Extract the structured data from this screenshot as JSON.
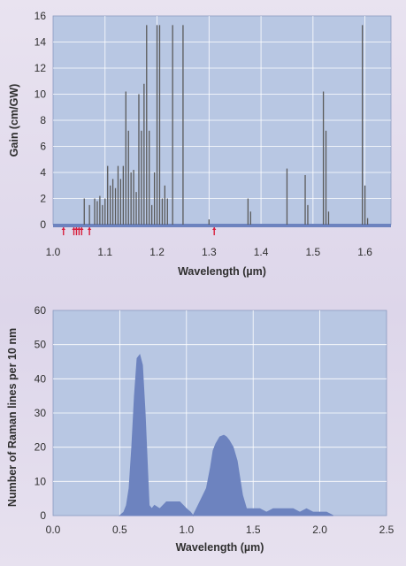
{
  "chart_data": [
    {
      "type": "bar",
      "xlabel": "Wavelength (µm)",
      "ylabel": "Gain (cm/GW)",
      "xlim": [
        1.0,
        1.65
      ],
      "ylim": [
        0,
        16
      ],
      "xticks": [
        1.0,
        1.1,
        1.2,
        1.3,
        1.4,
        1.5,
        1.6
      ],
      "xtick_labels": [
        "1.0",
        "1.1",
        "1.2",
        "1.3",
        "1.4",
        "1.5",
        "1.6"
      ],
      "yticks": [
        0,
        2,
        4,
        6,
        8,
        10,
        12,
        14,
        16
      ],
      "ytick_labels": [
        "0",
        "2",
        "4",
        "6",
        "8",
        "10",
        "12",
        "14",
        "16"
      ],
      "grid": true,
      "colors": {
        "plot_bg": "#b8c7e3",
        "grid": "#ffffff",
        "lines": "#555555",
        "markers": "#d81e3c",
        "axis_band": "#6d83bf"
      },
      "series": [
        {
          "x": [
            1.06,
            1.07,
            1.08,
            1.085,
            1.09,
            1.095,
            1.1,
            1.105,
            1.11,
            1.115,
            1.12,
            1.125,
            1.13,
            1.135,
            1.14,
            1.145,
            1.15,
            1.155,
            1.16,
            1.165,
            1.17,
            1.175,
            1.18,
            1.185,
            1.19,
            1.195,
            1.2,
            1.205,
            1.21,
            1.215,
            1.22,
            1.23,
            1.25,
            1.3,
            1.375,
            1.38,
            1.45,
            1.485,
            1.49,
            1.52,
            1.525,
            1.53,
            1.595,
            1.6,
            1.605
          ],
          "values": [
            2.0,
            1.5,
            2.0,
            1.8,
            2.2,
            1.5,
            2.0,
            4.5,
            3.0,
            3.5,
            2.8,
            4.5,
            3.5,
            4.5,
            10.2,
            7.2,
            4.0,
            4.2,
            2.5,
            10.0,
            7.2,
            10.8,
            15.3,
            7.2,
            1.5,
            4.0,
            15.3,
            15.3,
            2.0,
            3.0,
            2.0,
            15.3,
            15.3,
            0.4,
            2.0,
            1.0,
            4.3,
            3.8,
            1.5,
            10.2,
            7.2,
            1.0,
            15.3,
            3.0,
            0.5
          ]
        }
      ],
      "markers_x": [
        1.02,
        1.04,
        1.045,
        1.05,
        1.055,
        1.07,
        1.31
      ]
    },
    {
      "type": "area",
      "xlabel": "Wavelength (µm)",
      "ylabel": "Number of Raman lines per 10 nm",
      "xlim": [
        0.0,
        2.5
      ],
      "ylim": [
        0,
        60
      ],
      "xticks": [
        0.0,
        0.5,
        1.0,
        1.5,
        2.0,
        2.5
      ],
      "xtick_labels": [
        "0.0",
        "0.5",
        "1.0",
        "1.5",
        "2.0",
        "2.5"
      ],
      "yticks": [
        0,
        10,
        20,
        30,
        40,
        50,
        60
      ],
      "ytick_labels": [
        "0",
        "10",
        "20",
        "30",
        "40",
        "50",
        "60"
      ],
      "grid": true,
      "colors": {
        "plot_bg": "#b8c7e3",
        "grid": "#ffffff",
        "fill": "#6d83bf"
      },
      "series": [
        {
          "x": [
            0.5,
            0.53,
            0.55,
            0.57,
            0.59,
            0.61,
            0.63,
            0.65,
            0.67,
            0.69,
            0.71,
            0.72,
            0.74,
            0.76,
            0.8,
            0.85,
            0.9,
            0.95,
            1.0,
            1.03,
            1.05,
            1.1,
            1.15,
            1.18,
            1.2,
            1.22,
            1.25,
            1.28,
            1.3,
            1.32,
            1.35,
            1.38,
            1.4,
            1.42,
            1.45,
            1.5,
            1.55,
            1.6,
            1.65,
            1.7,
            1.75,
            1.8,
            1.85,
            1.9,
            1.95,
            2.0,
            2.05,
            2.1
          ],
          "values": [
            0,
            1,
            3,
            8,
            20,
            35,
            46,
            47,
            44,
            30,
            12,
            3,
            2,
            3,
            2,
            4,
            4,
            4,
            2,
            1,
            0,
            4,
            8,
            14,
            19,
            21,
            23,
            23.5,
            23,
            22,
            20,
            16,
            11,
            6,
            2,
            2,
            2,
            1,
            2,
            2,
            2,
            2,
            1,
            2,
            1,
            1,
            1,
            0
          ]
        }
      ]
    }
  ]
}
